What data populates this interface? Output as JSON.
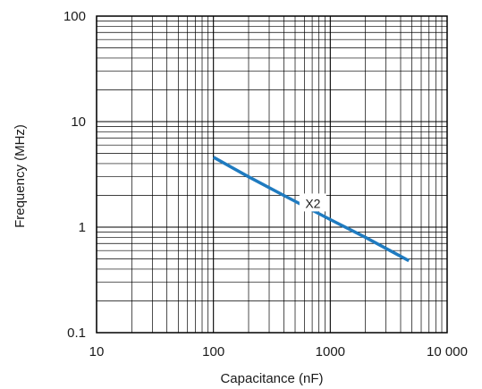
{
  "chart_data": {
    "type": "line",
    "title": "",
    "xlabel": "Capacitance (nF)",
    "ylabel": "Frequency (MHz)",
    "x_scale": "log",
    "y_scale": "log",
    "xlim": [
      10,
      10000
    ],
    "ylim": [
      0.1,
      100
    ],
    "x_ticks": [
      {
        "value": 10,
        "label": "10"
      },
      {
        "value": 100,
        "label": "100"
      },
      {
        "value": 1000,
        "label": "1000"
      },
      {
        "value": 10000,
        "label": "10 000"
      }
    ],
    "y_ticks": [
      {
        "value": 0.1,
        "label": "0.1"
      },
      {
        "value": 1,
        "label": "1"
      },
      {
        "value": 10,
        "label": "10"
      },
      {
        "value": 100,
        "label": "100"
      }
    ],
    "grid": true,
    "series": [
      {
        "name": "X2",
        "color": "#1f7bc0",
        "x": [
          100,
          200,
          400,
          1000,
          2000,
          4700
        ],
        "y": [
          4.6,
          3.0,
          2.0,
          1.18,
          0.8,
          0.48
        ]
      }
    ]
  }
}
